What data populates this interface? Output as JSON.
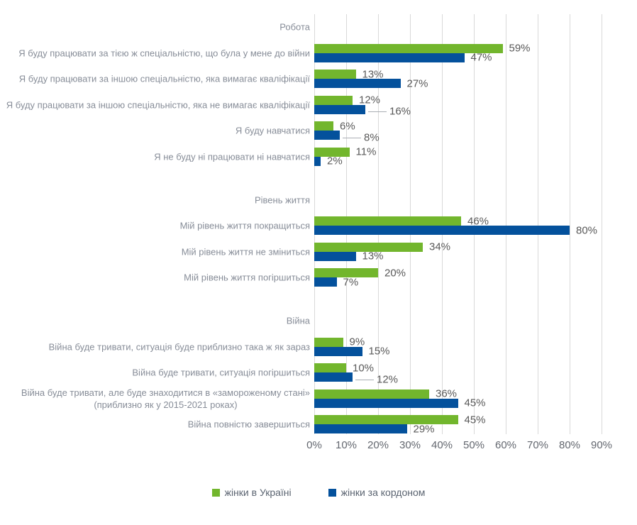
{
  "chart_data": {
    "type": "bar",
    "orientation": "horizontal",
    "title": "",
    "xlabel": "",
    "ylabel": "",
    "value_unit": "%",
    "xlim": [
      0,
      90
    ],
    "x_ticks": [
      "0%",
      "10%",
      "20%",
      "30%",
      "40%",
      "50%",
      "60%",
      "70%",
      "80%",
      "90%"
    ],
    "grid": true,
    "legend_position": "bottom",
    "series": [
      {
        "name": "жінки в Україні",
        "color": "#72B62D"
      },
      {
        "name": "жінки за кордоном",
        "color": "#04519C"
      }
    ],
    "sections": [
      {
        "title": "Робота",
        "items": [
          {
            "label_lines": [
              "Я буду працювати за тією ж спеціальністю, що була у мене до війни"
            ],
            "values": [
              59,
              47
            ],
            "leader": [
              false,
              false
            ]
          },
          {
            "label_lines": [
              "Я буду працювати за іншою спеціальністю, яка вимагає кваліфікації"
            ],
            "values": [
              13,
              27
            ],
            "leader": [
              false,
              false
            ]
          },
          {
            "label_lines": [
              "Я буду працювати за іншою спеціальністю, яка не вимагає кваліфікації"
            ],
            "values": [
              12,
              16
            ],
            "leader": [
              false,
              true
            ]
          },
          {
            "label_lines": [
              "Я буду навчатися"
            ],
            "values": [
              6,
              8
            ],
            "leader": [
              false,
              true
            ]
          },
          {
            "label_lines": [
              "Я не буду ні працювати ні навчатися"
            ],
            "values": [
              11,
              2
            ],
            "leader": [
              false,
              false
            ]
          }
        ]
      },
      {
        "title": "Рівень життя",
        "items": [
          {
            "label_lines": [
              "Мій рівень життя покращиться"
            ],
            "values": [
              46,
              80
            ],
            "leader": [
              false,
              false
            ]
          },
          {
            "label_lines": [
              "Мій рівень життя не зміниться"
            ],
            "values": [
              34,
              13
            ],
            "leader": [
              false,
              false
            ]
          },
          {
            "label_lines": [
              "Мій рівень життя погіршиться"
            ],
            "values": [
              20,
              7
            ],
            "leader": [
              false,
              false
            ]
          }
        ]
      },
      {
        "title": "Війна",
        "items": [
          {
            "label_lines": [
              "Війна буде тривати, ситуація буде приблизно така ж як зараз"
            ],
            "values": [
              9,
              15
            ],
            "leader": [
              false,
              false
            ]
          },
          {
            "label_lines": [
              "Війна буде тривати, ситуація погіршиться"
            ],
            "values": [
              10,
              12
            ],
            "leader": [
              false,
              true
            ]
          },
          {
            "label_lines": [
              "Війна буде тривати, але буде знаходитися в «замороженому стані»",
              "(приблизно як у 2015-2021 роках)"
            ],
            "values": [
              36,
              45
            ],
            "leader": [
              false,
              false
            ]
          },
          {
            "label_lines": [
              "Війна повністю завершиться"
            ],
            "values": [
              45,
              29
            ],
            "leader": [
              false,
              false
            ]
          }
        ]
      }
    ],
    "colors": {
      "grid": "#D9D9D9",
      "category_text": "#878D98",
      "value_text": "#595959",
      "axis_text": "#63676F",
      "legend_text": "#5A6370",
      "leader_line": "#A9ADB3"
    }
  }
}
